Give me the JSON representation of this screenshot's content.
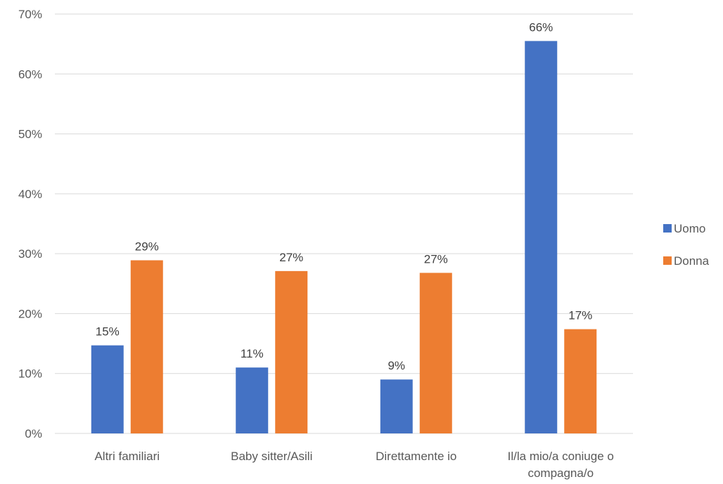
{
  "chart_data": {
    "type": "bar",
    "title": "",
    "xlabel": "",
    "ylabel": "",
    "categories": [
      [
        "Altri familiari"
      ],
      [
        "Baby sitter/Asili"
      ],
      [
        "Direttamente io"
      ],
      [
        "Il/la mio/a coniuge o",
        "compagna/o"
      ]
    ],
    "series": [
      {
        "name": "Uomo",
        "color": "#4472C4",
        "values": [
          0.147,
          0.11,
          0.09,
          0.655
        ],
        "labels": [
          "15%",
          "11%",
          "9%",
          "66%"
        ]
      },
      {
        "name": "Donna",
        "color": "#ED7D31",
        "values": [
          0.289,
          0.271,
          0.268,
          0.174
        ],
        "labels": [
          "29%",
          "27%",
          "27%",
          "17%"
        ]
      }
    ],
    "ylim": [
      0,
      0.7
    ],
    "yticks": [
      0,
      0.1,
      0.2,
      0.3,
      0.4,
      0.5,
      0.6,
      0.7
    ],
    "ytick_labels": [
      "0%",
      "10%",
      "20%",
      "30%",
      "40%",
      "50%",
      "60%",
      "70%"
    ],
    "grid": true,
    "legend_position": "right"
  }
}
